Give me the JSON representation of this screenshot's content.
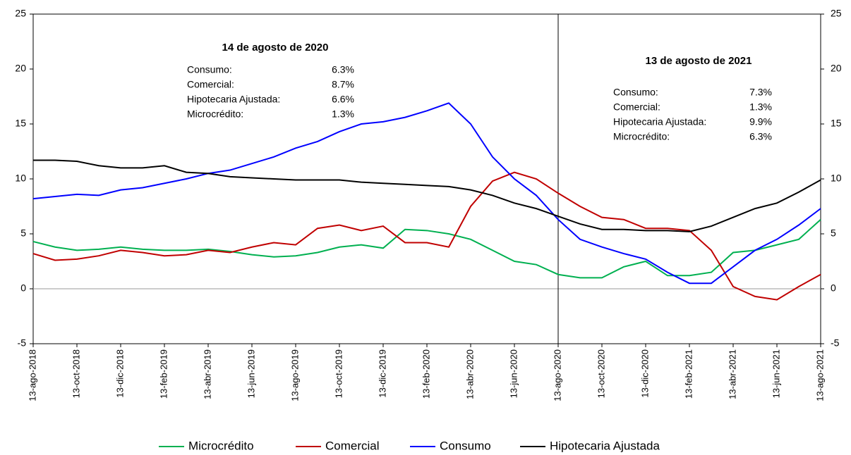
{
  "chart_data": {
    "type": "line",
    "categories": [
      "13-ago-2018",
      null,
      "13-oct-2018",
      null,
      "13-dic-2018",
      null,
      "13-feb-2019",
      null,
      "13-abr-2019",
      null,
      "13-jun-2019",
      null,
      "13-ago-2019",
      null,
      "13-oct-2019",
      null,
      "13-dic-2019",
      null,
      "13-feb-2020",
      null,
      "13-abr-2020",
      null,
      "13-jun-2020",
      null,
      "13-ago-2020",
      null,
      "13-oct-2020",
      null,
      "13-dic-2020",
      null,
      "13-feb-2021",
      null,
      "13-abr-2021",
      null,
      "13-jun-2021",
      null,
      "13-ago-2021"
    ],
    "series": [
      {
        "name": "Microcrédito",
        "color": "#00b050",
        "values": [
          4.3,
          3.8,
          3.5,
          3.6,
          3.8,
          3.6,
          3.5,
          3.5,
          3.6,
          3.4,
          3.1,
          2.9,
          3.0,
          3.3,
          3.8,
          4.0,
          3.7,
          5.4,
          5.3,
          5.0,
          4.5,
          3.5,
          2.5,
          2.2,
          1.3,
          1.0,
          1.0,
          2.0,
          2.5,
          1.2,
          1.2,
          1.5,
          3.3,
          3.5,
          4.0,
          4.5,
          6.3
        ]
      },
      {
        "name": "Comercial",
        "color": "#c00000",
        "values": [
          3.2,
          2.6,
          2.7,
          3.0,
          3.5,
          3.3,
          3.0,
          3.1,
          3.5,
          3.3,
          3.8,
          4.2,
          4.0,
          5.5,
          5.8,
          5.3,
          5.7,
          4.2,
          4.2,
          3.8,
          7.5,
          9.8,
          10.6,
          10.0,
          8.7,
          7.5,
          6.5,
          6.3,
          5.5,
          5.5,
          5.3,
          3.5,
          0.2,
          -0.7,
          -1.0,
          0.2,
          1.3
        ]
      },
      {
        "name": "Consumo",
        "color": "#0000ff",
        "values": [
          8.2,
          8.4,
          8.6,
          8.5,
          9.0,
          9.2,
          9.6,
          10.0,
          10.5,
          10.8,
          11.4,
          12.0,
          12.8,
          13.4,
          14.3,
          15.0,
          15.2,
          15.6,
          16.2,
          16.9,
          15.0,
          12.0,
          10.0,
          8.5,
          6.3,
          4.5,
          3.8,
          3.2,
          2.7,
          1.5,
          0.5,
          0.5,
          2.0,
          3.5,
          4.5,
          5.8,
          7.3
        ]
      },
      {
        "name": "Hipotecaria Ajustada",
        "color": "#000000",
        "values": [
          11.7,
          11.7,
          11.6,
          11.2,
          11.0,
          11.0,
          11.2,
          10.6,
          10.5,
          10.2,
          10.1,
          10.0,
          9.9,
          9.9,
          9.9,
          9.7,
          9.6,
          9.5,
          9.4,
          9.3,
          9.0,
          8.5,
          7.8,
          7.3,
          6.6,
          5.9,
          5.4,
          5.4,
          5.3,
          5.3,
          5.2,
          5.7,
          6.5,
          7.3,
          7.8,
          8.8,
          9.9
        ]
      }
    ],
    "ylim": [
      -5,
      25
    ],
    "yticks": [
      -5,
      0,
      5,
      10,
      15,
      20,
      25
    ],
    "y2lim": [
      -5,
      25
    ],
    "y2ticks": [
      -5,
      0,
      5,
      10,
      15,
      20,
      25
    ],
    "vline": "13-ago-2020",
    "legend": "bottom",
    "annotations": [
      {
        "title": "14 de agosto de 2020",
        "rows": [
          [
            "Consumo:",
            "6.3%"
          ],
          [
            "Comercial:",
            "8.7%"
          ],
          [
            "Hipotecaria Ajustada:",
            "6.6%"
          ],
          [
            "Microcrédito:",
            "1.3%"
          ]
        ]
      },
      {
        "title": "13 de agosto de 2021",
        "rows": [
          [
            "Consumo:",
            "7.3%"
          ],
          [
            "Comercial:",
            "1.3%"
          ],
          [
            "Hipotecaria Ajustada:",
            "9.9%"
          ],
          [
            "Microcrédito:",
            "6.3%"
          ]
        ]
      }
    ]
  }
}
